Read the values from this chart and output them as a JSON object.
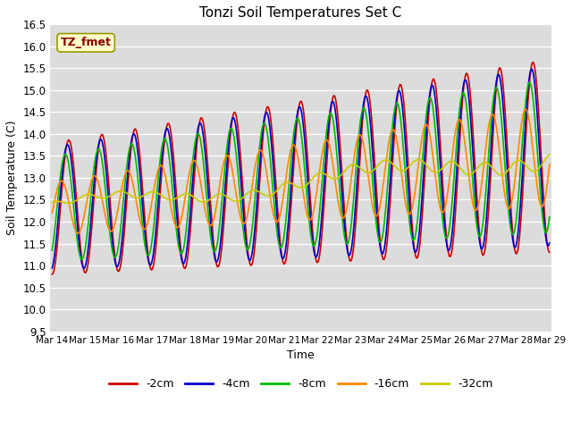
{
  "title": "Tonzi Soil Temperatures Set C",
  "xlabel": "Time",
  "ylabel": "Soil Temperature (C)",
  "ylim": [
    9.5,
    16.5
  ],
  "fig_facecolor": "#ffffff",
  "plot_facecolor": "#dcdcdc",
  "series": {
    "-2cm": {
      "color": "#cc0000",
      "lw": 1.2
    },
    "-4cm": {
      "color": "#0000cc",
      "lw": 1.2
    },
    "-8cm": {
      "color": "#00bb00",
      "lw": 1.2
    },
    "-16cm": {
      "color": "#ff8800",
      "lw": 1.2
    },
    "-32cm": {
      "color": "#cccc00",
      "lw": 1.2
    }
  },
  "annotation": {
    "text": "TZ_fmet",
    "fontsize": 9,
    "color": "#880000",
    "bbox_facecolor": "#ffffcc",
    "bbox_edgecolor": "#999900"
  },
  "xtick_labels": [
    "Mar 14",
    "Mar 15",
    "Mar 16",
    "Mar 17",
    "Mar 18",
    "Mar 19",
    "Mar 20",
    "Mar 21",
    "Mar 22",
    "Mar 23",
    "Mar 24",
    "Mar 25",
    "Mar 26",
    "Mar 27",
    "Mar 28",
    "Mar 29"
  ],
  "ytick_values": [
    9.5,
    10.0,
    10.5,
    11.0,
    11.5,
    12.0,
    12.5,
    13.0,
    13.5,
    14.0,
    14.5,
    15.0,
    15.5,
    16.0,
    16.5
  ],
  "num_days": 15,
  "points_per_day": 48
}
